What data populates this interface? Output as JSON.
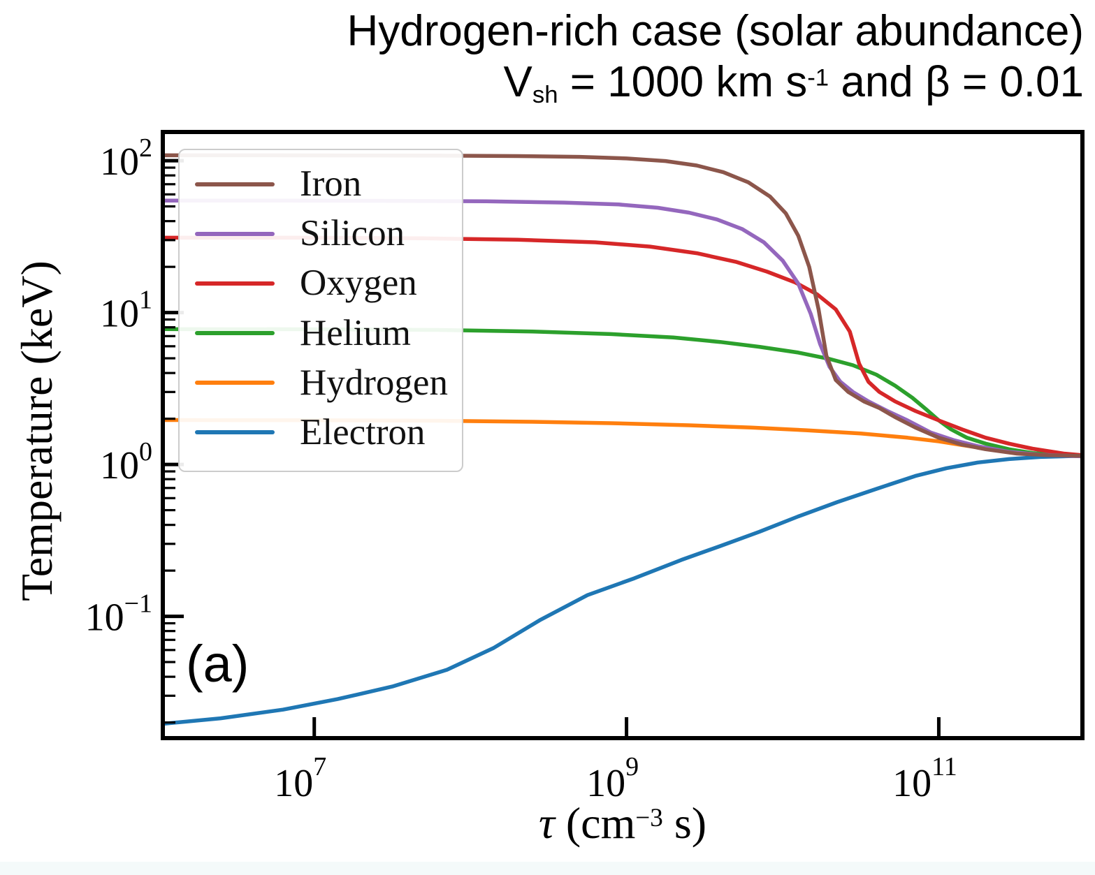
{
  "figure": {
    "title_line1": "Hydrogen-rich case (solar abundance)",
    "title_line2_parts": {
      "v": "V",
      "sub": "sh",
      "mid": " = 1000 km s",
      "sup": "-1",
      "end": " and β = 0.01"
    },
    "panel_label": "(a)"
  },
  "chart_data": {
    "type": "line",
    "title": "Hydrogen-rich case (solar abundance), V_sh = 1000 km s^-1 and beta = 0.01",
    "xlabel_parts": {
      "sym": "τ",
      "mid": " (cm",
      "sup": "−3",
      "end": " s)"
    },
    "ylabel": "Temperature (keV)",
    "x_scale": "log",
    "y_scale": "log",
    "x_log_range": [
      6.03,
      11.92
    ],
    "y_log_range": [
      -1.802,
      2.189
    ],
    "x_major_ticks": [
      {
        "value": 7,
        "base": "10",
        "exp": "7"
      },
      {
        "value": 9,
        "base": "10",
        "exp": "9"
      },
      {
        "value": 11,
        "base": "10",
        "exp": "11"
      }
    ],
    "y_major_ticks": [
      {
        "value": 2,
        "base": "10",
        "exp": "2"
      },
      {
        "value": 1,
        "base": "10",
        "exp": "1"
      },
      {
        "value": 0,
        "base": "10",
        "exp": "0"
      },
      {
        "value": -1,
        "base": "10",
        "exp": "−1"
      }
    ],
    "grid": false,
    "legend_position": "upper left",
    "axis_color": "#000000",
    "series": [
      {
        "name": "Iron",
        "color": "#8c564b",
        "points": [
          [
            6.03,
            108.5
          ],
          [
            6.6,
            108.5
          ],
          [
            7.2,
            108.3
          ],
          [
            7.8,
            108.0
          ],
          [
            8.3,
            107.3
          ],
          [
            8.7,
            106.0
          ],
          [
            9.0,
            103.5
          ],
          [
            9.25,
            99.5
          ],
          [
            9.45,
            93.0
          ],
          [
            9.62,
            84.0
          ],
          [
            9.78,
            72.0
          ],
          [
            9.92,
            58.0
          ],
          [
            10.02,
            45.0
          ],
          [
            10.1,
            32.0
          ],
          [
            10.17,
            20.0
          ],
          [
            10.23,
            10.5
          ],
          [
            10.28,
            5.2
          ],
          [
            10.34,
            3.6
          ],
          [
            10.42,
            3.0
          ],
          [
            10.52,
            2.6
          ],
          [
            10.62,
            2.35
          ],
          [
            10.72,
            2.05
          ],
          [
            10.85,
            1.75
          ],
          [
            11.0,
            1.5
          ],
          [
            11.15,
            1.35
          ],
          [
            11.3,
            1.26
          ],
          [
            11.5,
            1.18
          ],
          [
            11.7,
            1.15
          ],
          [
            11.92,
            1.14
          ]
        ]
      },
      {
        "name": "Silicon",
        "color": "#9467bd",
        "points": [
          [
            6.03,
            54.6
          ],
          [
            6.8,
            54.6
          ],
          [
            7.5,
            54.4
          ],
          [
            8.1,
            54.0
          ],
          [
            8.6,
            53.0
          ],
          [
            8.95,
            51.5
          ],
          [
            9.2,
            49.0
          ],
          [
            9.4,
            45.5
          ],
          [
            9.58,
            41.0
          ],
          [
            9.74,
            35.5
          ],
          [
            9.88,
            29.0
          ],
          [
            10.0,
            22.0
          ],
          [
            10.1,
            15.5
          ],
          [
            10.18,
            9.8
          ],
          [
            10.24,
            6.2
          ],
          [
            10.3,
            4.4
          ],
          [
            10.37,
            3.5
          ],
          [
            10.45,
            3.0
          ],
          [
            10.55,
            2.6
          ],
          [
            10.67,
            2.25
          ],
          [
            10.8,
            1.95
          ],
          [
            10.95,
            1.62
          ],
          [
            11.1,
            1.44
          ],
          [
            11.25,
            1.32
          ],
          [
            11.45,
            1.21
          ],
          [
            11.65,
            1.16
          ],
          [
            11.92,
            1.13
          ]
        ]
      },
      {
        "name": "Oxygen",
        "color": "#d62728",
        "points": [
          [
            6.03,
            31.1
          ],
          [
            6.9,
            31.1
          ],
          [
            7.7,
            30.8
          ],
          [
            8.3,
            30.2
          ],
          [
            8.8,
            29.0
          ],
          [
            9.15,
            27.2
          ],
          [
            9.45,
            24.6
          ],
          [
            9.7,
            21.6
          ],
          [
            9.9,
            18.6
          ],
          [
            10.08,
            15.8
          ],
          [
            10.22,
            13.2
          ],
          [
            10.34,
            10.5
          ],
          [
            10.43,
            7.5
          ],
          [
            10.49,
            4.6
          ],
          [
            10.55,
            3.5
          ],
          [
            10.62,
            3.0
          ],
          [
            10.72,
            2.6
          ],
          [
            10.85,
            2.25
          ],
          [
            11.0,
            1.95
          ],
          [
            11.15,
            1.7
          ],
          [
            11.3,
            1.5
          ],
          [
            11.45,
            1.37
          ],
          [
            11.6,
            1.27
          ],
          [
            11.8,
            1.18
          ],
          [
            11.92,
            1.15
          ]
        ]
      },
      {
        "name": "Helium",
        "color": "#2ca02c",
        "points": [
          [
            6.03,
            7.78
          ],
          [
            7.0,
            7.76
          ],
          [
            7.8,
            7.68
          ],
          [
            8.4,
            7.5
          ],
          [
            8.9,
            7.22
          ],
          [
            9.3,
            6.85
          ],
          [
            9.6,
            6.4
          ],
          [
            9.85,
            5.95
          ],
          [
            10.1,
            5.45
          ],
          [
            10.3,
            4.95
          ],
          [
            10.45,
            4.5
          ],
          [
            10.6,
            3.9
          ],
          [
            10.72,
            3.3
          ],
          [
            10.83,
            2.75
          ],
          [
            10.92,
            2.3
          ],
          [
            11.0,
            1.95
          ],
          [
            11.08,
            1.7
          ],
          [
            11.18,
            1.5
          ],
          [
            11.3,
            1.37
          ],
          [
            11.45,
            1.26
          ],
          [
            11.6,
            1.19
          ],
          [
            11.8,
            1.15
          ],
          [
            11.92,
            1.13
          ]
        ]
      },
      {
        "name": "Hydrogen",
        "color": "#ff7f0e",
        "points": [
          [
            6.03,
            1.96
          ],
          [
            7.0,
            1.955
          ],
          [
            7.8,
            1.94
          ],
          [
            8.4,
            1.91
          ],
          [
            8.9,
            1.87
          ],
          [
            9.4,
            1.81
          ],
          [
            9.8,
            1.75
          ],
          [
            10.15,
            1.68
          ],
          [
            10.5,
            1.6
          ],
          [
            10.8,
            1.5
          ],
          [
            11.0,
            1.42
          ],
          [
            11.15,
            1.34
          ],
          [
            11.3,
            1.27
          ],
          [
            11.5,
            1.2
          ],
          [
            11.7,
            1.16
          ],
          [
            11.92,
            1.13
          ]
        ]
      },
      {
        "name": "Electron",
        "color": "#1f77b4",
        "points": [
          [
            6.03,
            0.0196
          ],
          [
            6.4,
            0.0213
          ],
          [
            6.8,
            0.0243
          ],
          [
            7.15,
            0.0285
          ],
          [
            7.5,
            0.0345
          ],
          [
            7.85,
            0.0445
          ],
          [
            8.15,
            0.062
          ],
          [
            8.45,
            0.095
          ],
          [
            8.75,
            0.138
          ],
          [
            9.05,
            0.178
          ],
          [
            9.35,
            0.235
          ],
          [
            9.6,
            0.29
          ],
          [
            9.85,
            0.36
          ],
          [
            10.1,
            0.455
          ],
          [
            10.35,
            0.565
          ],
          [
            10.6,
            0.69
          ],
          [
            10.85,
            0.84
          ],
          [
            11.05,
            0.945
          ],
          [
            11.25,
            1.03
          ],
          [
            11.45,
            1.085
          ],
          [
            11.65,
            1.12
          ],
          [
            11.92,
            1.14
          ]
        ]
      }
    ]
  }
}
